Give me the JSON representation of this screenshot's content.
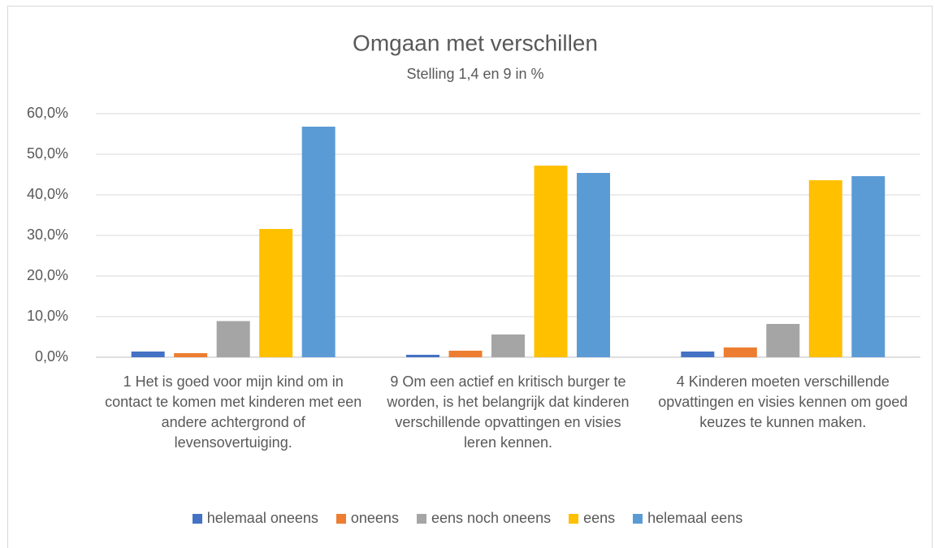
{
  "chart_data": {
    "type": "bar",
    "title": "Omgaan met verschillen",
    "subtitle": "Stelling 1,4 en 9 in %",
    "categories": [
      "1 Het is goed voor mijn kind om in contact te komen met kinderen met een andere achtergrond of levensovertuiging.",
      "9 Om een actief en kritisch burger te worden, is het belangrijk dat kinderen verschillende opvattingen en visies leren kennen.",
      "4 Kinderen moeten verschillende opvattingen en visies kennen om goed keuzes te kunnen maken."
    ],
    "series": [
      {
        "name": "helemaal oneens",
        "color": "#4472c4",
        "values": [
          1.4,
          0.6,
          1.4
        ]
      },
      {
        "name": "oneens",
        "color": "#ed7d31",
        "values": [
          1.0,
          1.6,
          2.4
        ]
      },
      {
        "name": "eens noch oneens",
        "color": "#a5a5a5",
        "values": [
          8.9,
          5.6,
          8.2
        ]
      },
      {
        "name": "eens",
        "color": "#ffc000",
        "values": [
          31.6,
          47.2,
          43.6
        ]
      },
      {
        "name": "helemaal eens",
        "color": "#5b9bd5",
        "values": [
          56.8,
          45.4,
          44.6
        ]
      }
    ],
    "ylim": [
      0,
      60
    ],
    "yticks": [
      {
        "value": 0,
        "label": "0,0%"
      },
      {
        "value": 10,
        "label": "10,0%"
      },
      {
        "value": 20,
        "label": "20,0%"
      },
      {
        "value": 30,
        "label": "30,0%"
      },
      {
        "value": 40,
        "label": "40,0%"
      },
      {
        "value": 50,
        "label": "50,0%"
      },
      {
        "value": 60,
        "label": "60,0%"
      }
    ],
    "grid": true,
    "legend": "bottom"
  }
}
